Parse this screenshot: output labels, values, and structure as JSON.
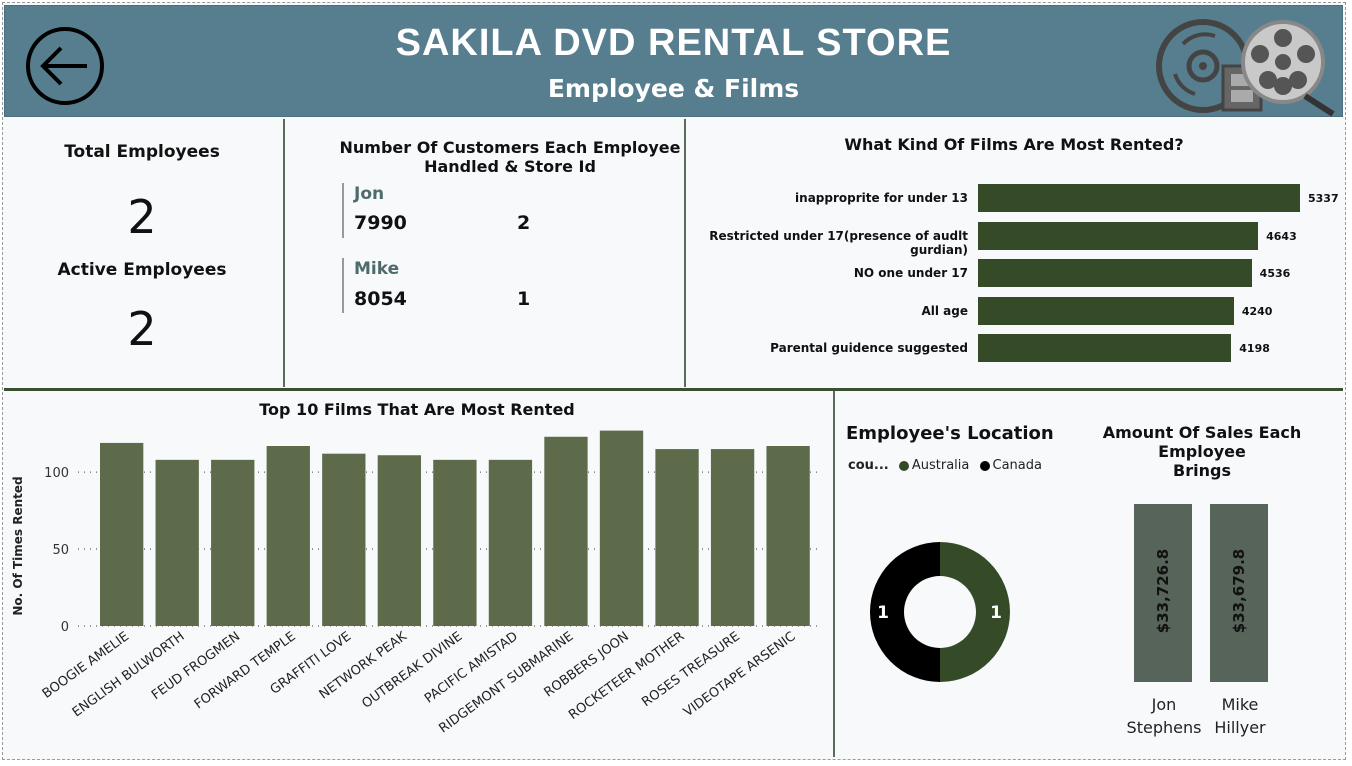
{
  "header": {
    "title": "SAKILA DVD RENTAL STORE",
    "subtitle": "Employee & Films",
    "back_icon": "arrow-left-circle-icon",
    "logo_icon": "dvd-film-reel-icon"
  },
  "kpis": {
    "total_label": "Total Employees",
    "total_value": "2",
    "active_label": "Active Employees",
    "active_value": "2"
  },
  "customers_card": {
    "title_line1": "Number Of Customers Each Employee",
    "title_line2": "Handled & Store Id",
    "employees": [
      {
        "name": "Jon",
        "customers": "7990",
        "store_id": "2"
      },
      {
        "name": "Mike",
        "customers": "8054",
        "store_id": "1"
      }
    ]
  },
  "ratings_chart": {
    "title": "What Kind Of Films Are Most Rented?",
    "bar_color": "#354a26"
  },
  "top_films_chart": {
    "title": "Top 10 Films That Are Most Rented",
    "bar_color": "#5d6b4b"
  },
  "location_chart": {
    "title": "Employee's Location",
    "legend_label": "cou...",
    "legend": [
      {
        "name": "Australia",
        "color": "#354a26"
      },
      {
        "name": "Canada",
        "color": "#000000"
      }
    ],
    "slice_labels": [
      "1",
      "1"
    ]
  },
  "sales_chart": {
    "title_line1": "Amount Of Sales Each Employee",
    "title_line2": "Brings",
    "bars": [
      {
        "name_line1": "Jon",
        "name_line2": "Stephens",
        "value": "$33,726.8"
      },
      {
        "name_line1": "Mike",
        "name_line2": "Hillyer",
        "value": "$33,679.8"
      }
    ]
  },
  "chart_data": [
    {
      "type": "bar",
      "orientation": "horizontal",
      "title": "What Kind Of Films Are Most Rented?",
      "categories": [
        "inapproprite for under 13",
        "Restricted under 17(presence of audlt gurdian)",
        "NO one under 17",
        "All age",
        "Parental guidence suggested"
      ],
      "values": [
        5337,
        4643,
        4536,
        4240,
        4198
      ]
    },
    {
      "type": "bar",
      "title": "Top 10 Films That Are Most Rented",
      "ylabel": "No. Of Times Rented",
      "xlabel": "",
      "ylim": [
        0,
        130
      ],
      "yticks": [
        0,
        50,
        100
      ],
      "categories": [
        "BOOGIE AMELIE",
        "ENGLISH BULWORTH",
        "FEUD FROGMEN",
        "FORWARD TEMPLE",
        "GRAFFITI LOVE",
        "NETWORK PEAK",
        "OUTBREAK DIVINE",
        "PACIFIC AMISTAD",
        "RIDGEMONT SUBMARINE",
        "ROBBERS JOON",
        "ROCKETEER MOTHER",
        "ROSES TREASURE",
        "VIDEOTAPE ARSENIC"
      ],
      "values": [
        119,
        108,
        108,
        117,
        112,
        111,
        108,
        108,
        123,
        127,
        115,
        115,
        117
      ],
      "grid": true
    },
    {
      "type": "pie",
      "title": "Employee's Location",
      "categories": [
        "Australia",
        "Canada"
      ],
      "values": [
        1,
        1
      ]
    },
    {
      "type": "bar",
      "title": "Amount Of Sales Each Employee Brings",
      "categories": [
        "Jon Stephens",
        "Mike Hillyer"
      ],
      "values": [
        33726.8,
        33679.8
      ]
    }
  ]
}
